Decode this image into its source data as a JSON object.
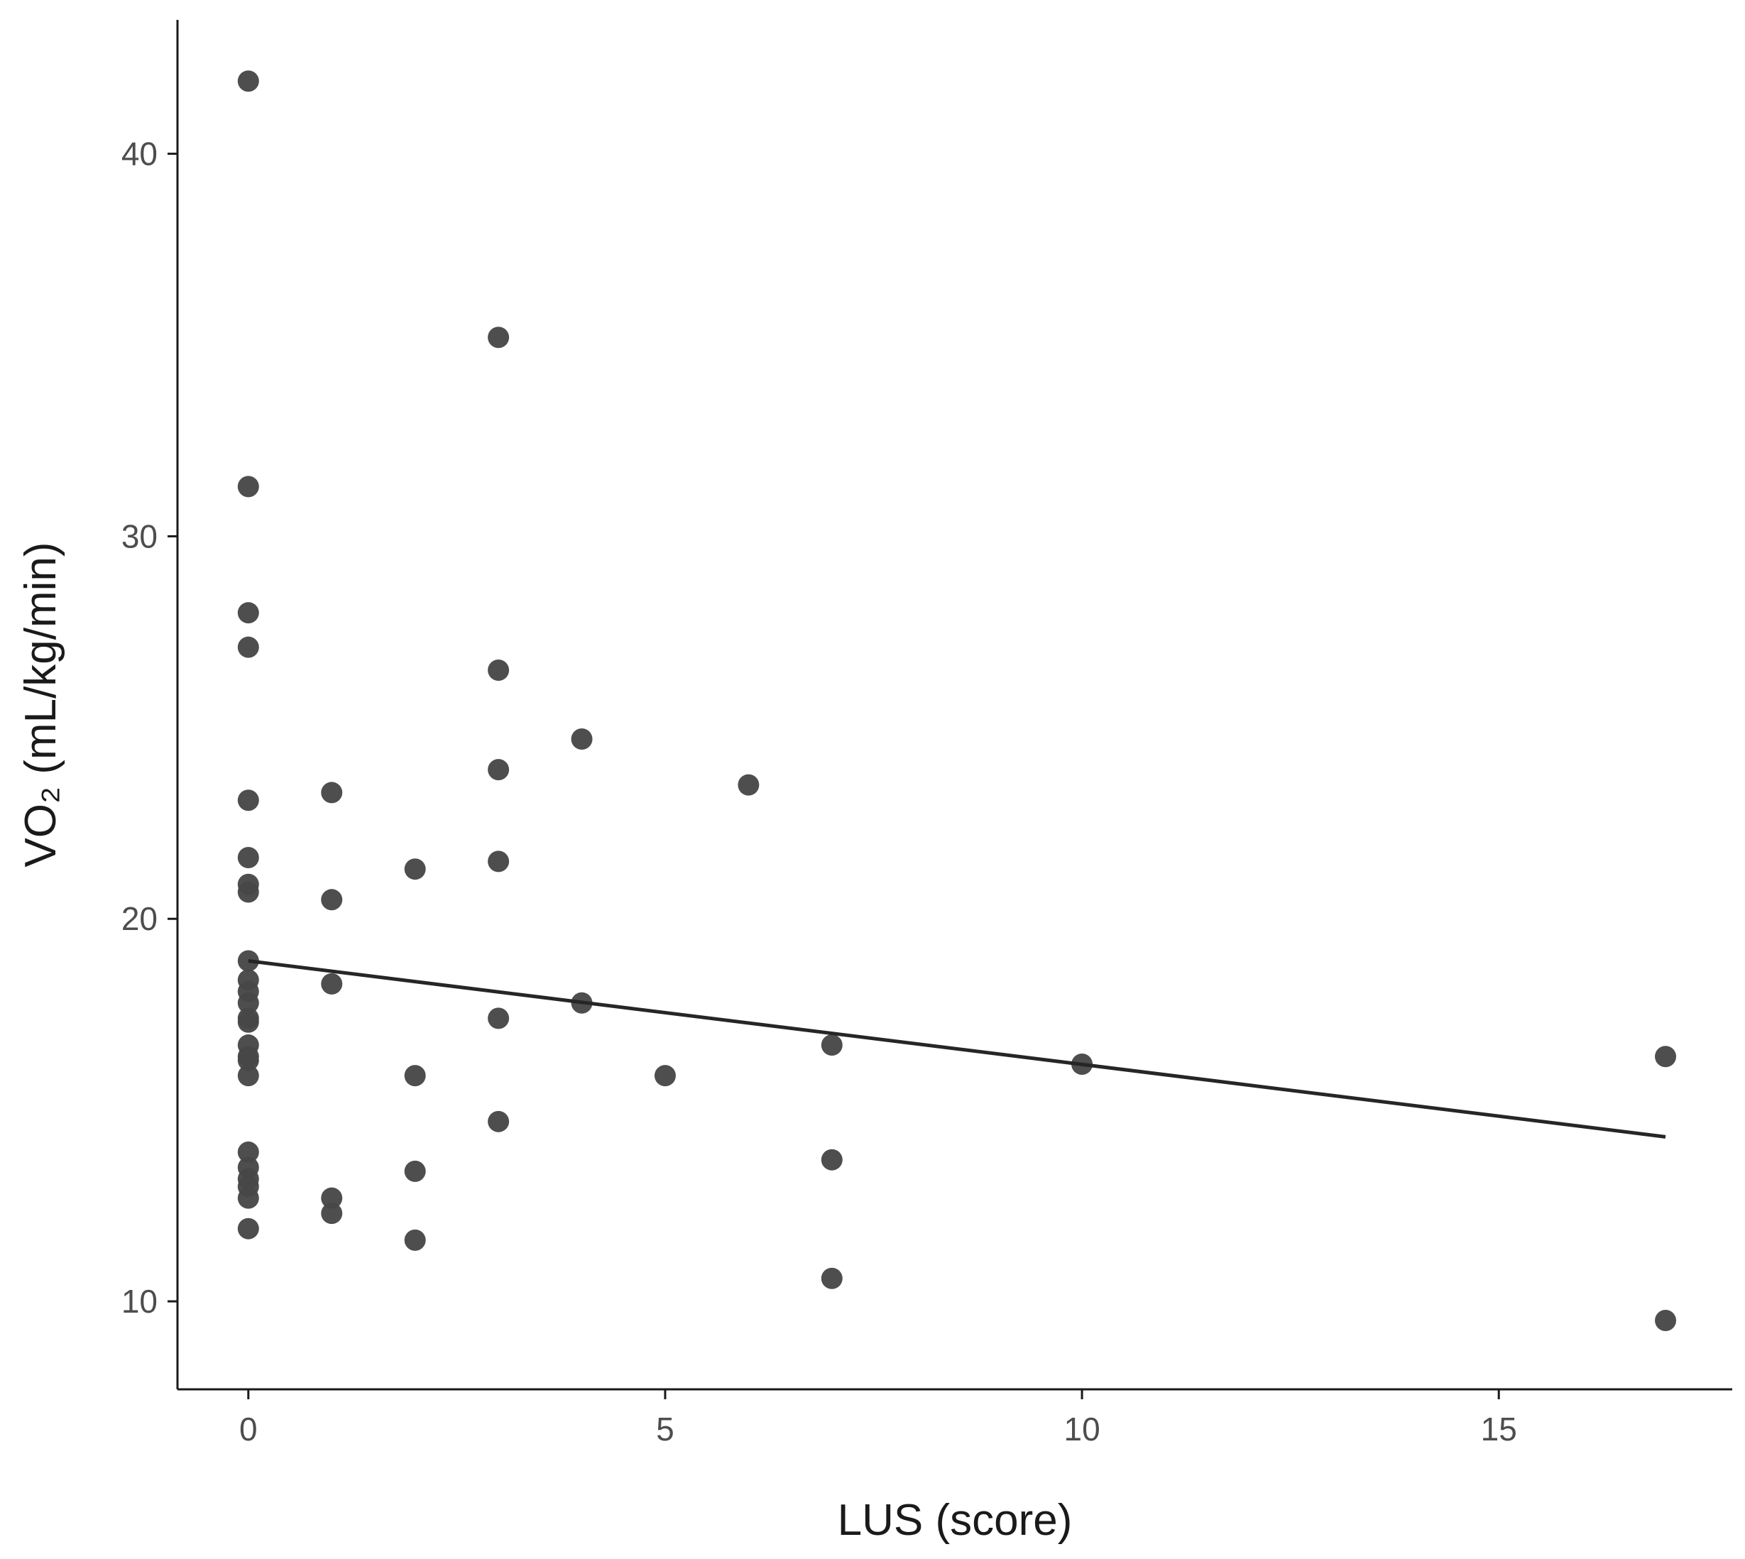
{
  "chart_data": {
    "type": "scatter",
    "xlabel": "LUS (score)",
    "ylabel": "VO₂ (mL/kg/min)",
    "xlim": [
      -0.85,
      17.8
    ],
    "ylim": [
      7.7,
      43.5
    ],
    "x_ticks": [
      0,
      5,
      10,
      15
    ],
    "y_ticks": [
      10,
      20,
      30,
      40
    ],
    "x_tick_labels": [
      "0",
      "5",
      "10",
      "15"
    ],
    "y_tick_labels": [
      "10",
      "20",
      "30",
      "40"
    ],
    "grid": false,
    "point_color": "#474747",
    "line_color": "#262626",
    "series": [
      {
        "points": [
          [
            0,
            41.9
          ],
          [
            0,
            31.3
          ],
          [
            0,
            28.0
          ],
          [
            0,
            27.1
          ],
          [
            0,
            23.1
          ],
          [
            0,
            21.6
          ],
          [
            0,
            20.9
          ],
          [
            0,
            20.7
          ],
          [
            0,
            18.9
          ],
          [
            0,
            18.4
          ],
          [
            0,
            18.1
          ],
          [
            0,
            17.8
          ],
          [
            0,
            17.4
          ],
          [
            0,
            17.3
          ],
          [
            0,
            16.7
          ],
          [
            0,
            16.4
          ],
          [
            0,
            16.3
          ],
          [
            0,
            15.9
          ],
          [
            0,
            13.9
          ],
          [
            0,
            13.5
          ],
          [
            0,
            13.2
          ],
          [
            0,
            13.0
          ],
          [
            0,
            12.7
          ],
          [
            0,
            11.9
          ],
          [
            1,
            23.3
          ],
          [
            1,
            20.5
          ],
          [
            1,
            18.3
          ],
          [
            1,
            12.7
          ],
          [
            1,
            12.3
          ],
          [
            2,
            21.3
          ],
          [
            2,
            15.9
          ],
          [
            2,
            13.4
          ],
          [
            2,
            11.6
          ],
          [
            3,
            35.2
          ],
          [
            3,
            26.5
          ],
          [
            3,
            23.9
          ],
          [
            3,
            21.5
          ],
          [
            3,
            17.4
          ],
          [
            3,
            14.7
          ],
          [
            4,
            24.7
          ],
          [
            4,
            17.8
          ],
          [
            5,
            15.9
          ],
          [
            6,
            23.5
          ],
          [
            7,
            16.7
          ],
          [
            7,
            13.7
          ],
          [
            7,
            10.6
          ],
          [
            10,
            16.2
          ],
          [
            17,
            16.4
          ],
          [
            17,
            9.5
          ]
        ]
      }
    ],
    "fit_line": {
      "x": [
        0,
        17
      ],
      "y": [
        18.9,
        14.3
      ]
    }
  }
}
